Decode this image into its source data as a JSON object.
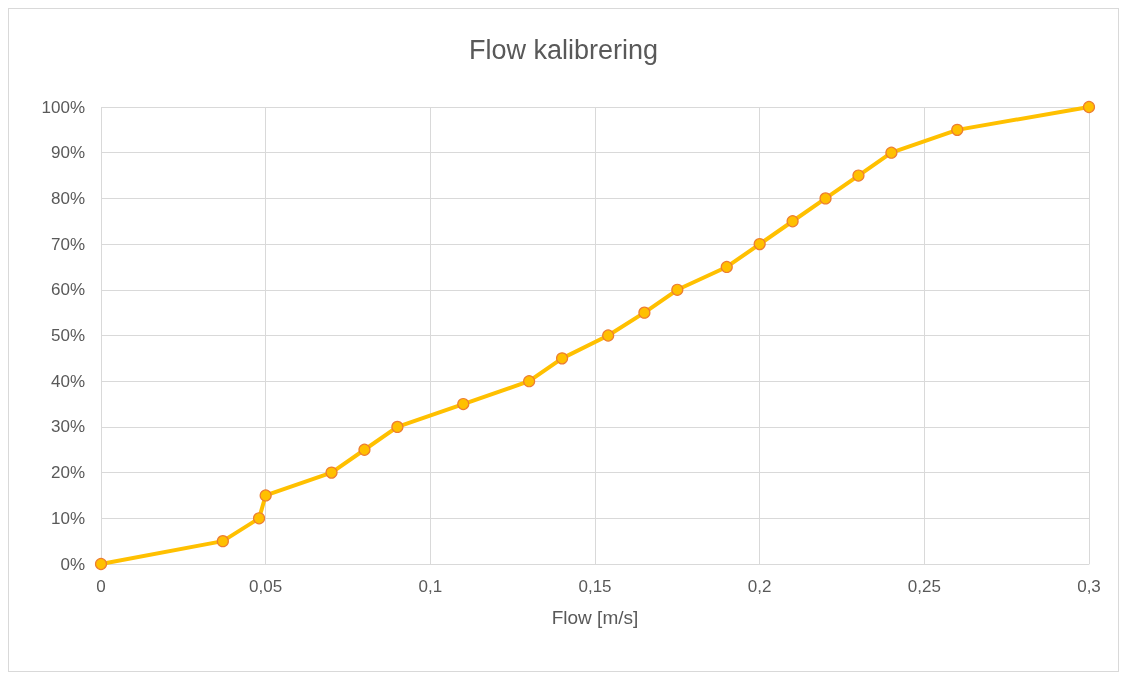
{
  "chart_data": {
    "type": "line",
    "title": "Flow kalibrering",
    "xlabel": "Flow [m/s]",
    "x": [
      0,
      0.037,
      0.048,
      0.05,
      0.07,
      0.08,
      0.09,
      0.11,
      0.13,
      0.14,
      0.154,
      0.165,
      0.175,
      0.19,
      0.2,
      0.21,
      0.22,
      0.23,
      0.24,
      0.26,
      0.3
    ],
    "series": [
      {
        "color": "#ffc000",
        "values": [
          0,
          5,
          10,
          15,
          20,
          25,
          30,
          35,
          40,
          45,
          50,
          55,
          60,
          65,
          70,
          75,
          80,
          85,
          90,
          95,
          100
        ]
      }
    ],
    "xlim": [
      0,
      0.3
    ],
    "xticks": [
      0,
      {
        "value": 0.05,
        "label": "0,05"
      },
      {
        "value": 0.1,
        "label": "0,1"
      },
      {
        "value": 0.15,
        "label": "0,15"
      },
      {
        "value": 0.2,
        "label": "0,2"
      },
      {
        "value": 0.25,
        "label": "0,25"
      },
      {
        "value": 0.3,
        "label": "0,3"
      }
    ],
    "ylim": [
      0,
      100
    ],
    "yticks": [
      {
        "value": 0,
        "label": "0%"
      },
      {
        "value": 10,
        "label": "10%"
      },
      {
        "value": 20,
        "label": "20%"
      },
      {
        "value": 30,
        "label": "30%"
      },
      {
        "value": 40,
        "label": "40%"
      },
      {
        "value": 50,
        "label": "50%"
      },
      {
        "value": 60,
        "label": "60%"
      },
      {
        "value": 70,
        "label": "70%"
      },
      {
        "value": 80,
        "label": "80%"
      },
      {
        "value": 90,
        "label": "90%"
      },
      {
        "value": 100,
        "label": "100%"
      }
    ],
    "grid": true,
    "marker": "circle",
    "line_style": "solid"
  }
}
